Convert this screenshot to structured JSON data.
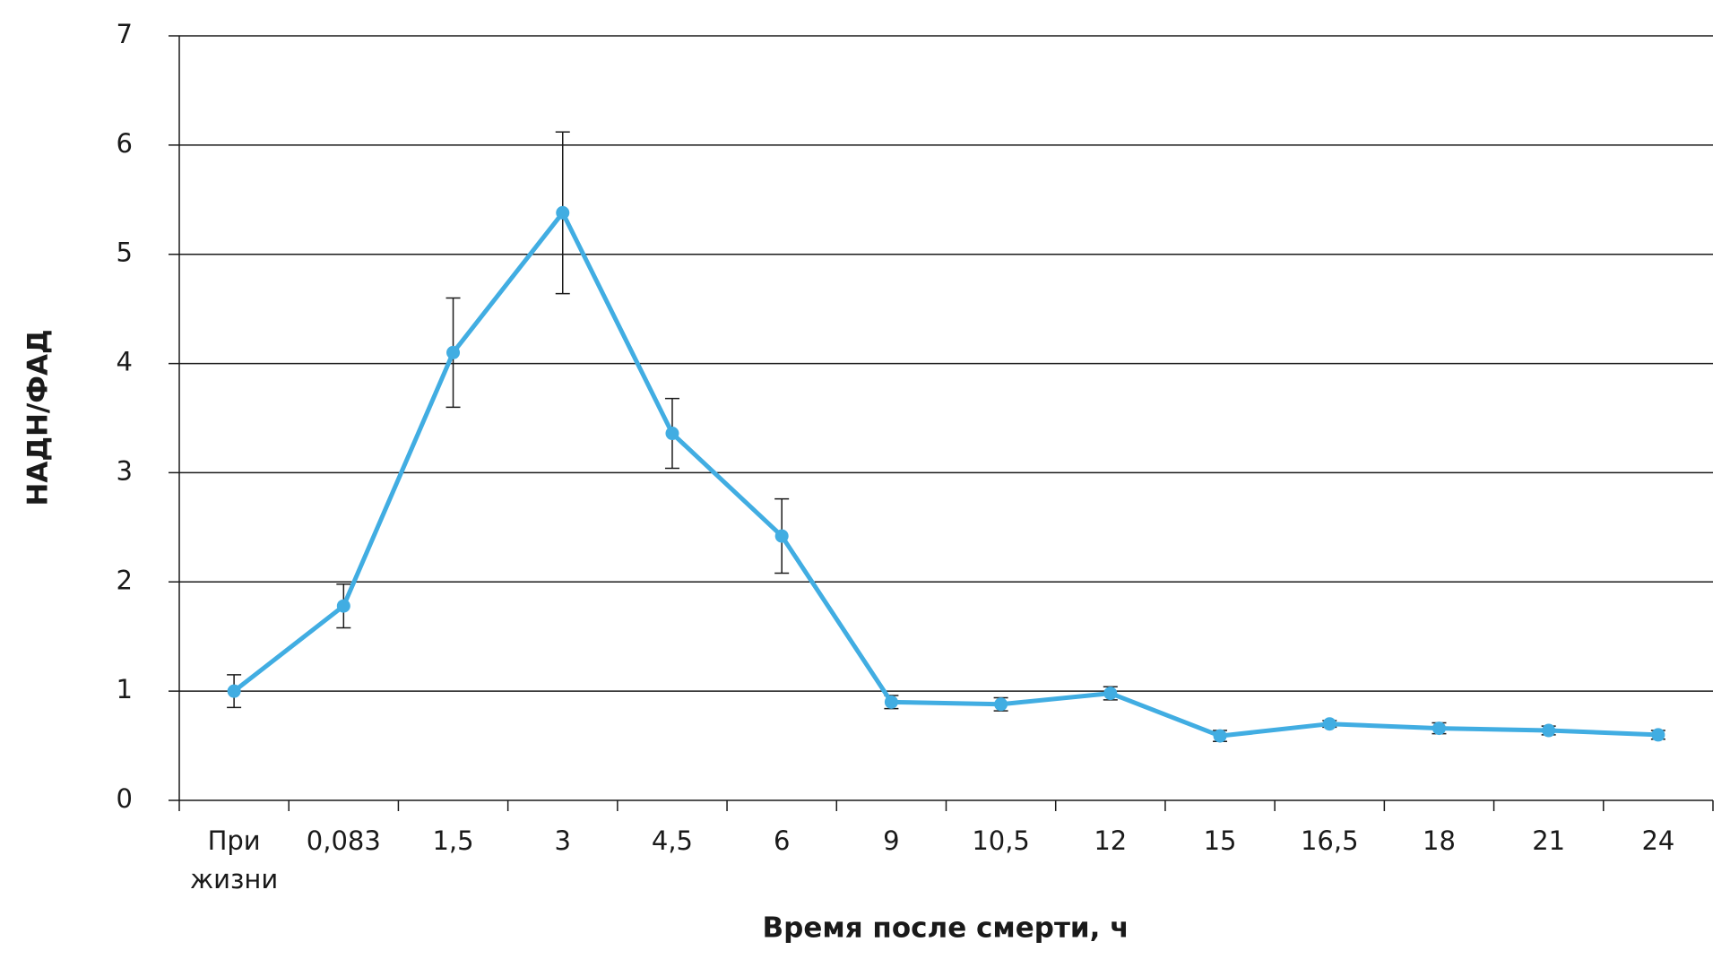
{
  "chart_data": {
    "type": "line",
    "xlabel": "Время после смерти, ч",
    "ylabel": "НАДН/ФАД",
    "categories": [
      "При жизни",
      "0,083",
      "1,5",
      "3",
      "4,5",
      "6",
      "9",
      "10,5",
      "12",
      "15",
      "16,5",
      "18",
      "21",
      "24"
    ],
    "values": [
      1.0,
      1.78,
      4.1,
      5.38,
      3.36,
      2.42,
      0.9,
      0.88,
      0.98,
      0.59,
      0.7,
      0.66,
      0.64,
      0.6
    ],
    "errors": [
      0.15,
      0.2,
      0.5,
      0.74,
      0.32,
      0.34,
      0.06,
      0.06,
      0.06,
      0.05,
      0.03,
      0.05,
      0.04,
      0.04
    ],
    "color": "#41ade2",
    "ylim": [
      0,
      7
    ],
    "yticks": [
      0,
      1,
      2,
      3,
      4,
      5,
      6,
      7
    ],
    "grid": true
  }
}
